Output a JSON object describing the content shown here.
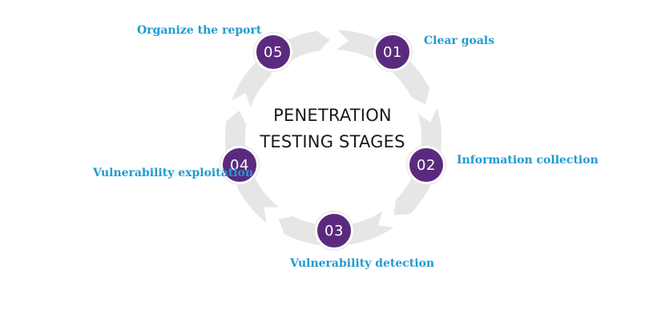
{
  "diagram": {
    "title_line1": "PENETRATION",
    "title_line2": "TESTING STAGES",
    "colors": {
      "node": "#5b2a7e",
      "label": "#1f9bd1",
      "ring": "#e6e6e6"
    },
    "stages": [
      {
        "number": "01",
        "label": "Clear goals"
      },
      {
        "number": "02",
        "label": "Information collection"
      },
      {
        "number": "03",
        "label": "Vulnerability detection"
      },
      {
        "number": "04",
        "label": "Vulnerability exploitation"
      },
      {
        "number": "05",
        "label": "Organize the report"
      }
    ]
  }
}
